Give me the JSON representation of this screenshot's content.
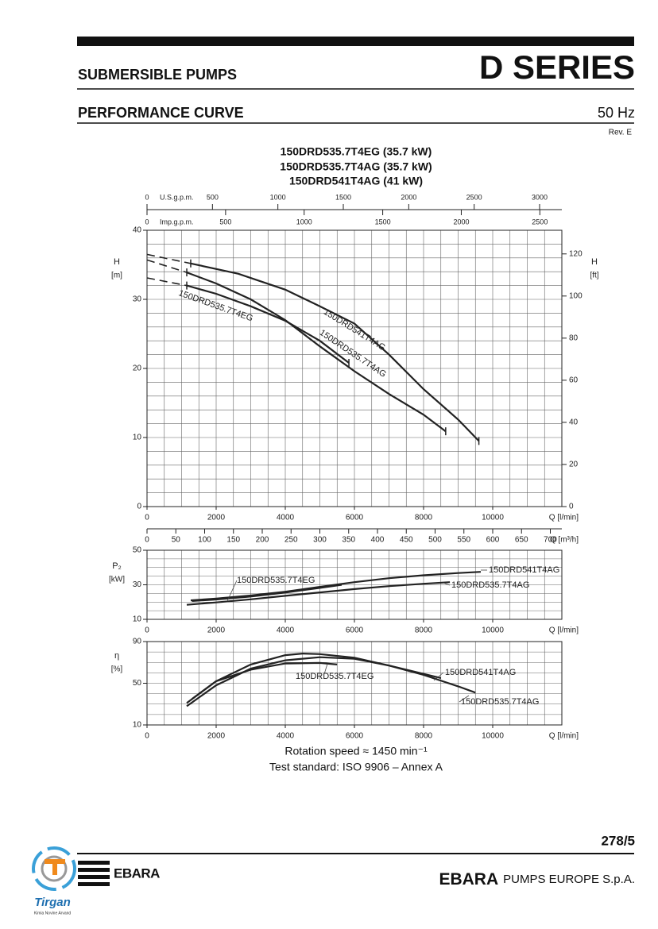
{
  "header": {
    "left": "SUBMERSIBLE PUMPS",
    "right": "D SERIES"
  },
  "section": {
    "title": "PERFORMANCE CURVE",
    "frequency": "50 Hz",
    "revision": "Rev. E"
  },
  "chart_titles": [
    "150DRD535.7T4EG (35.7 kW)",
    "150DRD535.7T4AG (35.7 kW)",
    "150DRD541T4AG (41 kW)"
  ],
  "chart_data": [
    {
      "type": "line",
      "y_label": "H",
      "y_unit": "[m]",
      "y2_label": "H",
      "y2_unit": "[ft]",
      "x_label": "Q [l/min]",
      "xlim": [
        0,
        12000
      ],
      "xticks": [
        0,
        2000,
        4000,
        6000,
        8000,
        10000
      ],
      "ylim": [
        0,
        40
      ],
      "yticks": [
        0,
        10,
        20,
        30,
        40
      ],
      "y2lim": [
        0,
        131.23
      ],
      "y2ticks": [
        0,
        20,
        40,
        60,
        80,
        100,
        120
      ],
      "grid": true,
      "x_grid_step": 500,
      "y_grid_step": 2,
      "top_axes": [
        {
          "label": "U.S.g.p.m.",
          "lim": [
            0,
            3170
          ],
          "ticks": [
            0,
            500,
            1000,
            1500,
            2000,
            2500,
            3000
          ]
        },
        {
          "label": "Imp.g.p.m.",
          "lim": [
            0,
            2640
          ],
          "ticks": [
            0,
            500,
            1000,
            1500,
            2000,
            2500
          ]
        }
      ],
      "bottom_axis": {
        "label": "Q [m³/h]",
        "lim": [
          0,
          720
        ],
        "ticks": [
          0,
          50,
          100,
          150,
          200,
          250,
          300,
          350,
          400,
          450,
          500,
          550,
          600,
          650,
          700
        ]
      },
      "series": [
        {
          "name": "150DRD541T4AG",
          "color": "#222222",
          "x": [
            1264,
            2644,
            4000,
            5000,
            6000,
            7000,
            8000,
            9000,
            9600
          ],
          "values": [
            35.2,
            33.7,
            31.4,
            29.0,
            26.5,
            22.0,
            17.0,
            12.6,
            9.5
          ],
          "dashed_x": [
            0,
            1264
          ],
          "dashed_values": [
            36.5,
            35.2
          ]
        },
        {
          "name": "150DRD535.7T4AG",
          "color": "#222222",
          "x": [
            1150,
            2000,
            3000,
            4000,
            5000,
            6000,
            7000,
            8000,
            8640
          ],
          "values": [
            33.9,
            32.3,
            30.0,
            27.0,
            23.2,
            19.6,
            16.3,
            13.3,
            10.9
          ],
          "dashed_x": [
            0,
            1150
          ],
          "dashed_values": [
            35.7,
            33.9
          ]
        },
        {
          "name": "150DRD535.7T4EG",
          "color": "#222222",
          "x": [
            1150,
            2000,
            3000,
            4000,
            5000,
            5840
          ],
          "values": [
            32.0,
            30.8,
            29.0,
            26.9,
            24.0,
            20.8
          ],
          "dashed_x": [
            0,
            1150
          ],
          "dashed_values": [
            33.1,
            32.0
          ]
        }
      ]
    },
    {
      "type": "line",
      "y_label": "P₂",
      "y_unit": "[kW]",
      "x_label": "Q [l/min]",
      "xlim": [
        0,
        12000
      ],
      "xticks": [
        0,
        2000,
        4000,
        6000,
        8000,
        10000
      ],
      "ylim": [
        10,
        50
      ],
      "yticks": [
        10,
        30,
        50
      ],
      "grid": true,
      "x_grid_step": 500,
      "y_grid_step": 5,
      "series": [
        {
          "name": "150DRD541T4AG",
          "color": "#222222",
          "x": [
            1264,
            2000,
            3000,
            4000,
            5000,
            6000,
            7000,
            8000,
            9000,
            9655
          ],
          "values": [
            21.0,
            22.0,
            23.8,
            26.0,
            28.8,
            31.5,
            33.8,
            35.5,
            36.8,
            37.5
          ]
        },
        {
          "name": "150DRD535.7T4AG",
          "color": "#222222",
          "x": [
            1150,
            2000,
            3000,
            4000,
            5000,
            6000,
            7000,
            8000,
            8760
          ],
          "values": [
            18.4,
            19.8,
            21.6,
            23.6,
            25.6,
            27.5,
            29.2,
            30.6,
            31.5
          ]
        },
        {
          "name": "150DRD535.7T4EG",
          "color": "#222222",
          "x": [
            1300,
            2000,
            3000,
            4000,
            5000,
            5632
          ],
          "values": [
            20.6,
            21.5,
            23.2,
            25.5,
            28.2,
            30.0
          ]
        }
      ]
    },
    {
      "type": "line",
      "y_label": "η",
      "y_unit": "[%]",
      "x_label": "Q [l/min]",
      "xlim": [
        0,
        12000
      ],
      "xticks": [
        0,
        2000,
        4000,
        6000,
        8000,
        10000
      ],
      "ylim": [
        10,
        90
      ],
      "yticks": [
        10,
        50,
        90
      ],
      "grid": true,
      "x_grid_step": 500,
      "y_grid_step": 10,
      "series": [
        {
          "name": "150DRD541T4AG",
          "color": "#222222",
          "x": [
            1150,
            2000,
            3000,
            4000,
            5000,
            6000,
            7000,
            8000,
            9000,
            9500
          ],
          "values": [
            28,
            48,
            64,
            72,
            75,
            73.5,
            67,
            58,
            47,
            41
          ]
        },
        {
          "name": "150DRD535.7T4AG",
          "color": "#222222",
          "x": [
            1150,
            2000,
            3000,
            4000,
            4500,
            5000,
            6000,
            7000,
            8000,
            8500
          ],
          "values": [
            31,
            52,
            68,
            77,
            78.5,
            78,
            74.5,
            67,
            59,
            55
          ]
        },
        {
          "name": "150DRD535.7T4EG",
          "color": "#222222",
          "x": [
            1300,
            2000,
            3000,
            4000,
            5000,
            5500
          ],
          "values": [
            35,
            52,
            63,
            69,
            69.5,
            68
          ]
        }
      ]
    }
  ],
  "footnotes": [
    "Rotation speed ≈ 1450 min⁻¹",
    "Test standard: ISO 9906 – Annex A"
  ],
  "footer": {
    "page": "278/5",
    "logo": "EBARA",
    "company_bold": "EBARA",
    "company_rest": "PUMPS EUROPE S.p.A.",
    "badge": "Tirgan",
    "badge_sub": "Kimia Novine Arvand"
  }
}
